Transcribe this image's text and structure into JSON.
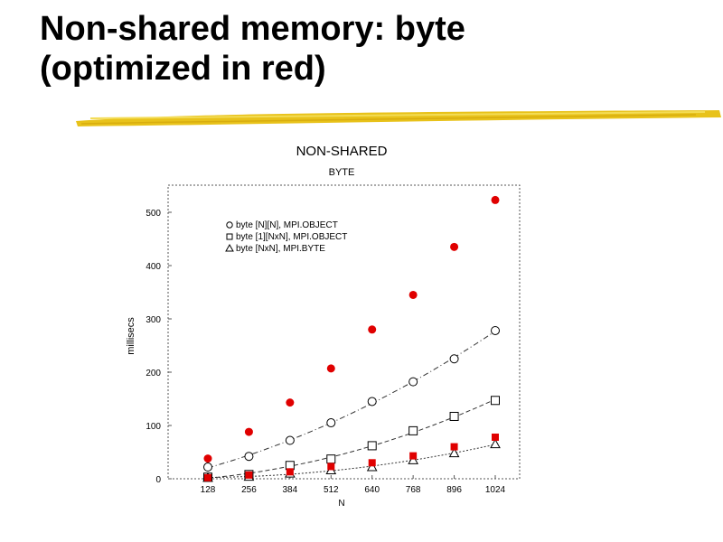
{
  "slide": {
    "title_line1": "Non-shared memory: byte",
    "title_line2": "(optimized in red)",
    "accent_color": "#e8c21a"
  },
  "chart_data": {
    "type": "scatter",
    "title": "NON-SHARED",
    "subtitle": "BYTE",
    "xlabel": "N",
    "ylabel": "millisecs",
    "x": [
      128,
      256,
      384,
      512,
      640,
      768,
      896,
      1024
    ],
    "xticks": [
      "128",
      "256",
      "384",
      "512",
      "640",
      "768",
      "896",
      "1024"
    ],
    "yticks": [
      "0",
      "100",
      "200",
      "300",
      "400",
      "500"
    ],
    "xlim": [
      128,
      1024
    ],
    "ylim": [
      0,
      500
    ],
    "grid": false,
    "legend_position": "top-left",
    "series": [
      {
        "name": "byte [N][N], MPI.OBJECT",
        "marker": "circle",
        "color": "#000000",
        "values": [
          22,
          42,
          72,
          105,
          145,
          182,
          225,
          278
        ]
      },
      {
        "name": "byte [1][NxN], MPI.OBJECT",
        "marker": "square",
        "color": "#000000",
        "values": [
          3,
          8,
          25,
          37,
          62,
          90,
          117,
          147
        ]
      },
      {
        "name": "byte [NxN], MPI.BYTE",
        "marker": "triangle",
        "color": "#000000",
        "values": [
          2,
          4,
          10,
          16,
          22,
          35,
          48,
          65
        ]
      },
      {
        "marker": "circle-filled",
        "color": "#e00000",
        "values": [
          38,
          88,
          143,
          207,
          280,
          345,
          435,
          523
        ]
      },
      {
        "marker": "square-filled",
        "color": "#e00000",
        "values": [
          2,
          7,
          13,
          23,
          30,
          43,
          60,
          78
        ]
      }
    ]
  }
}
